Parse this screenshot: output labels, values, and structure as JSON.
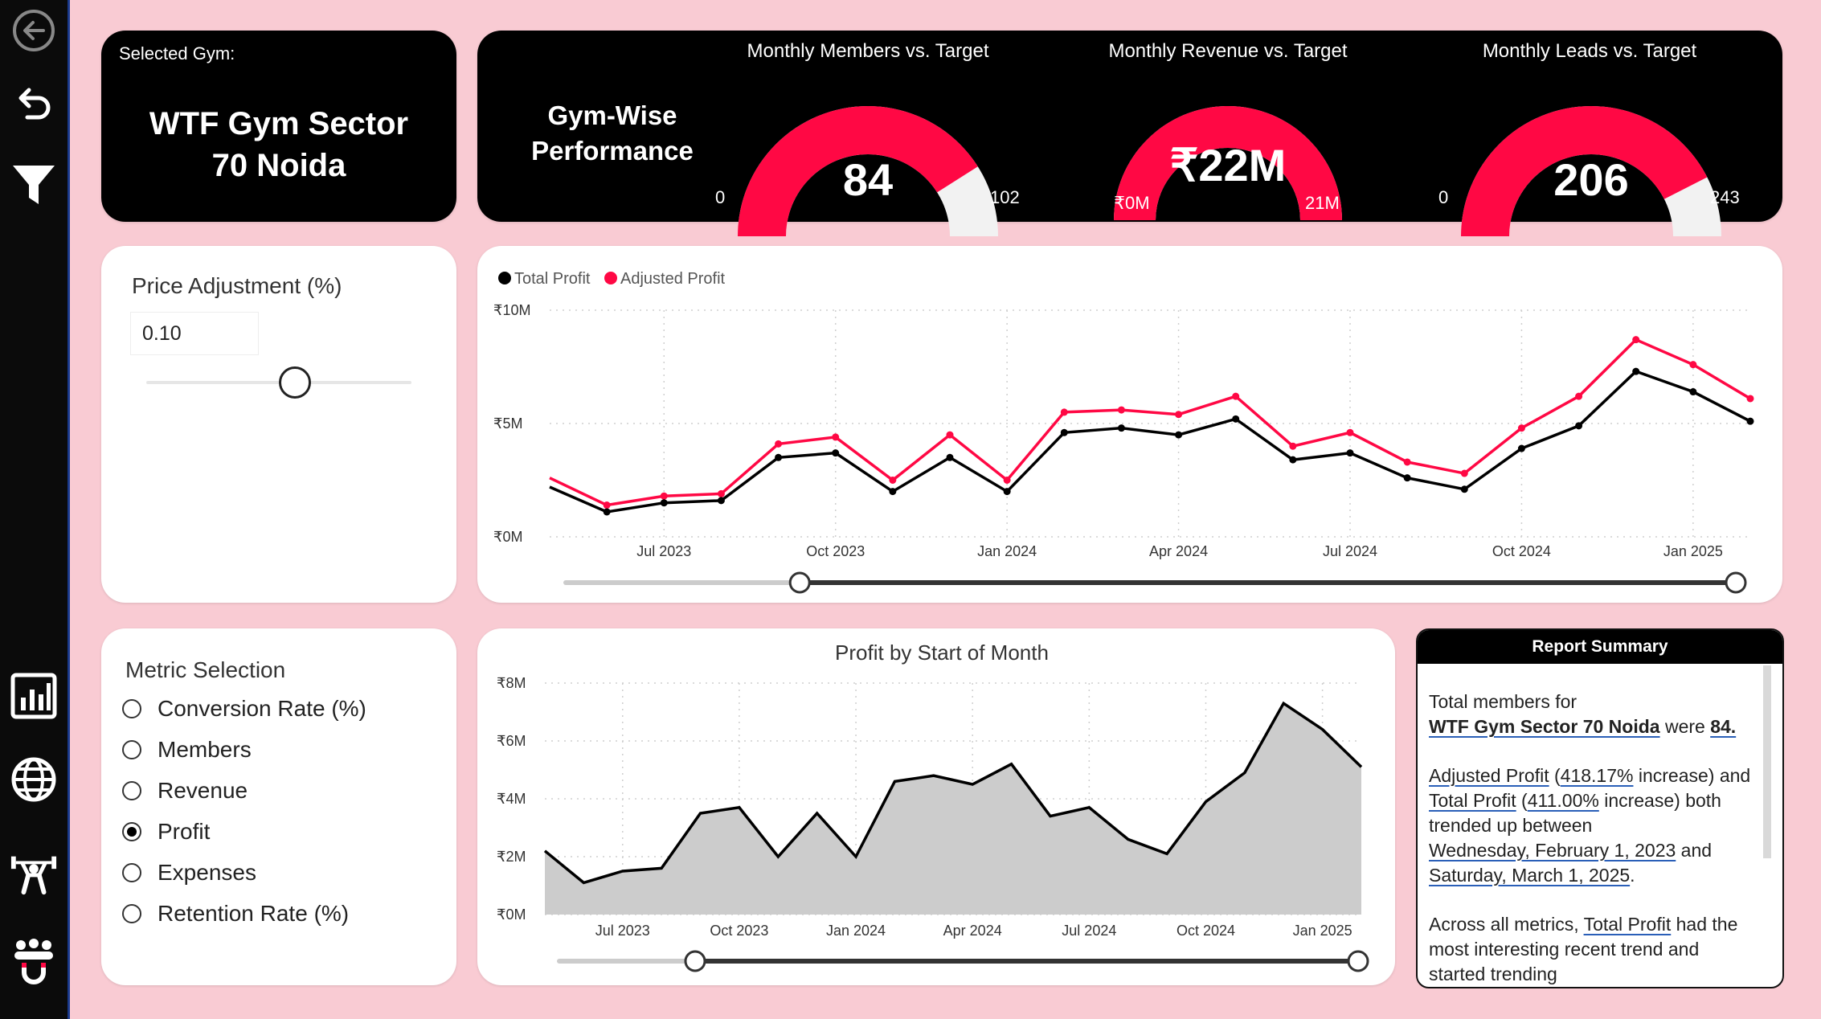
{
  "sidebar": {
    "icons": [
      "back-circle-icon",
      "undo-icon",
      "filter-icon",
      "bar-chart-icon",
      "globe-icon",
      "weightlifter-icon",
      "people-magnet-icon"
    ]
  },
  "selected_gym": {
    "label": "Selected Gym:",
    "name_line1": "WTF Gym Sector",
    "name_line2": "70 Noida"
  },
  "performance": {
    "title_line1": "Gym-Wise",
    "title_line2": "Performance",
    "gauges": [
      {
        "title": "Monthly Members vs. Target",
        "value_label": "84",
        "min_label": "0",
        "max_label": "102",
        "fraction": 0.82,
        "color": "#ff0844"
      },
      {
        "title": "Monthly Revenue vs. Target",
        "value_label": "₹22M",
        "min_label": "₹0M",
        "max_label": "21M",
        "fraction": 1.0,
        "color": "#ff0844"
      },
      {
        "title": "Monthly Leads vs. Target",
        "value_label": "206",
        "min_label": "0",
        "max_label": "243",
        "fraction": 0.85,
        "color": "#ff0844"
      }
    ]
  },
  "price_adjustment": {
    "label": "Price Adjustment (%)",
    "value": "0.10",
    "slider_fraction": 0.56
  },
  "metric_selection": {
    "title": "Metric Selection",
    "options": [
      {
        "label": "Conversion Rate (%)",
        "selected": false
      },
      {
        "label": "Members",
        "selected": false
      },
      {
        "label": "Revenue",
        "selected": false
      },
      {
        "label": "Profit",
        "selected": true
      },
      {
        "label": "Expenses",
        "selected": false
      },
      {
        "label": "Retention Rate (%)",
        "selected": false
      }
    ]
  },
  "report_summary": {
    "title": "Report Summary",
    "p1_a": "Total members for",
    "p1_gym": "WTF Gym Sector 70 Noida",
    "p1_b": "were",
    "p1_val": "84.",
    "p2_adj": "Adjusted Profit",
    "p2_adj_pct": "418.17%",
    "p2_adj_rest": "increase) and",
    "p2_tot": "Total Profit",
    "p2_tot_pct": "411.00%",
    "p2_tot_rest": "increase) both",
    "p2_mid": "trended up between",
    "p2_date1": "Wednesday, February 1, 2023",
    "p2_and": "and",
    "p2_date2": "Saturday, March 1, 2025",
    "p3_a": "Across all metrics,",
    "p3_tot": "Total Profit",
    "p3_b": "had the most interesting recent trend and",
    "p3_cut": "started trending"
  },
  "chart_data": [
    {
      "type": "line",
      "title": "",
      "legend": [
        "Total Profit",
        "Adjusted Profit"
      ],
      "legend_position": "top-left",
      "x_ticks": [
        "Jul 2023",
        "Oct 2023",
        "Jan 2024",
        "Apr 2024",
        "Jul 2024",
        "Oct 2024",
        "Jan 2025"
      ],
      "y_ticks": [
        "₹0M",
        "₹5M",
        "₹10M"
      ],
      "ylim": [
        0,
        10
      ],
      "series": [
        {
          "name": "Total Profit",
          "color": "#000000",
          "values": [
            2.2,
            1.1,
            1.5,
            1.6,
            3.5,
            3.7,
            2.0,
            3.5,
            2.0,
            4.6,
            4.8,
            4.5,
            5.2,
            3.4,
            3.7,
            2.6,
            2.1,
            3.9,
            4.9,
            7.3,
            6.4,
            5.1
          ]
        },
        {
          "name": "Adjusted Profit",
          "color": "#ff0844",
          "values": [
            2.6,
            1.4,
            1.8,
            1.9,
            4.1,
            4.4,
            2.5,
            4.5,
            2.5,
            5.5,
            5.6,
            5.4,
            6.2,
            4.0,
            4.6,
            3.3,
            2.8,
            4.8,
            6.2,
            8.7,
            7.6,
            6.1
          ]
        }
      ],
      "range_slider": {
        "start": 0.2,
        "end": 1.0
      }
    },
    {
      "type": "area",
      "title": "Profit by Start of Month",
      "x_ticks": [
        "Jul 2023",
        "Oct 2023",
        "Jan 2024",
        "Apr 2024",
        "Jul 2024",
        "Oct 2024",
        "Jan 2025"
      ],
      "y_ticks": [
        "₹0M",
        "₹2M",
        "₹4M",
        "₹6M",
        "₹8M"
      ],
      "ylim": [
        0,
        8
      ],
      "series": [
        {
          "name": "Profit",
          "color": "#000000",
          "fill": "#cccccc",
          "values": [
            2.2,
            1.1,
            1.5,
            1.6,
            3.5,
            3.7,
            2.0,
            3.5,
            2.0,
            4.6,
            4.8,
            4.5,
            5.2,
            3.4,
            3.7,
            2.6,
            2.1,
            3.9,
            4.9,
            7.3,
            6.4,
            5.1
          ]
        }
      ],
      "range_slider": {
        "start": 0.17,
        "end": 1.0
      }
    }
  ]
}
